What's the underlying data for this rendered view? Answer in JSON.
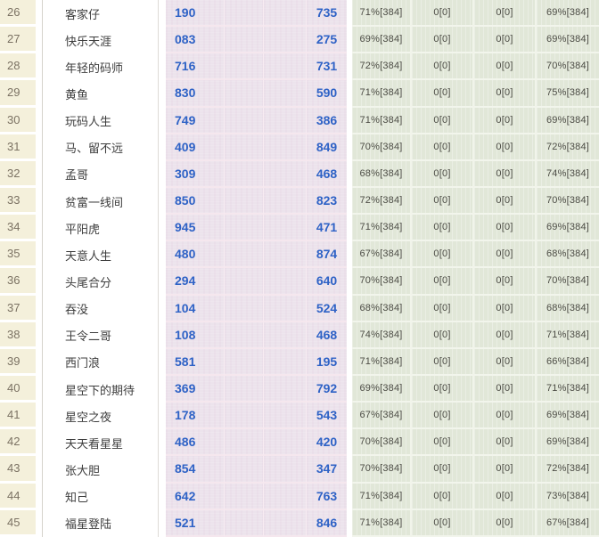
{
  "colors": {
    "beige": "#f4f0db",
    "pink": "#ece3ec",
    "green": "#e1e7d8",
    "accent-blue": "#2e62c6",
    "rank-text": "#7b7263",
    "name-text": "#3d3d3d",
    "pct-text": "#4c4c45"
  },
  "table": {
    "description": "ranking stats table rows 26-45",
    "rows": [
      {
        "rank": "26",
        "name": "客家仔",
        "num1": "190",
        "num2": "735",
        "p1": "71%[384]",
        "p2": "0[0]",
        "p3": "0[0]",
        "p4": "69%[384]"
      },
      {
        "rank": "27",
        "name": "快乐天涯",
        "num1": "083",
        "num2": "275",
        "p1": "69%[384]",
        "p2": "0[0]",
        "p3": "0[0]",
        "p4": "69%[384]"
      },
      {
        "rank": "28",
        "name": "年轻的码师",
        "num1": "716",
        "num2": "731",
        "p1": "72%[384]",
        "p2": "0[0]",
        "p3": "0[0]",
        "p4": "70%[384]"
      },
      {
        "rank": "29",
        "name": "黄鱼",
        "num1": "830",
        "num2": "590",
        "p1": "71%[384]",
        "p2": "0[0]",
        "p3": "0[0]",
        "p4": "75%[384]"
      },
      {
        "rank": "30",
        "name": "玩码人生",
        "num1": "749",
        "num2": "386",
        "p1": "71%[384]",
        "p2": "0[0]",
        "p3": "0[0]",
        "p4": "69%[384]"
      },
      {
        "rank": "31",
        "name": "马、留不远",
        "num1": "409",
        "num2": "849",
        "p1": "70%[384]",
        "p2": "0[0]",
        "p3": "0[0]",
        "p4": "72%[384]"
      },
      {
        "rank": "32",
        "name": "孟哥",
        "num1": "309",
        "num2": "468",
        "p1": "68%[384]",
        "p2": "0[0]",
        "p3": "0[0]",
        "p4": "74%[384]"
      },
      {
        "rank": "33",
        "name": "贫富一线间",
        "num1": "850",
        "num2": "823",
        "p1": "72%[384]",
        "p2": "0[0]",
        "p3": "0[0]",
        "p4": "70%[384]"
      },
      {
        "rank": "34",
        "name": "平阳虎",
        "num1": "945",
        "num2": "471",
        "p1": "71%[384]",
        "p2": "0[0]",
        "p3": "0[0]",
        "p4": "69%[384]"
      },
      {
        "rank": "35",
        "name": "天意人生",
        "num1": "480",
        "num2": "874",
        "p1": "67%[384]",
        "p2": "0[0]",
        "p3": "0[0]",
        "p4": "68%[384]"
      },
      {
        "rank": "36",
        "name": "头尾合分",
        "num1": "294",
        "num2": "640",
        "p1": "70%[384]",
        "p2": "0[0]",
        "p3": "0[0]",
        "p4": "70%[384]"
      },
      {
        "rank": "37",
        "name": "吞没",
        "num1": "104",
        "num2": "524",
        "p1": "68%[384]",
        "p2": "0[0]",
        "p3": "0[0]",
        "p4": "68%[384]"
      },
      {
        "rank": "38",
        "name": "王令二哥",
        "num1": "108",
        "num2": "468",
        "p1": "74%[384]",
        "p2": "0[0]",
        "p3": "0[0]",
        "p4": "71%[384]"
      },
      {
        "rank": "39",
        "name": "西门浪",
        "num1": "581",
        "num2": "195",
        "p1": "71%[384]",
        "p2": "0[0]",
        "p3": "0[0]",
        "p4": "66%[384]"
      },
      {
        "rank": "40",
        "name": "星空下的期待",
        "num1": "369",
        "num2": "792",
        "p1": "69%[384]",
        "p2": "0[0]",
        "p3": "0[0]",
        "p4": "71%[384]"
      },
      {
        "rank": "41",
        "name": "星空之夜",
        "num1": "178",
        "num2": "543",
        "p1": "67%[384]",
        "p2": "0[0]",
        "p3": "0[0]",
        "p4": "69%[384]"
      },
      {
        "rank": "42",
        "name": "天天看星星",
        "num1": "486",
        "num2": "420",
        "p1": "70%[384]",
        "p2": "0[0]",
        "p3": "0[0]",
        "p4": "69%[384]"
      },
      {
        "rank": "43",
        "name": "张大胆",
        "num1": "854",
        "num2": "347",
        "p1": "70%[384]",
        "p2": "0[0]",
        "p3": "0[0]",
        "p4": "72%[384]"
      },
      {
        "rank": "44",
        "name": "知己",
        "num1": "642",
        "num2": "763",
        "p1": "71%[384]",
        "p2": "0[0]",
        "p3": "0[0]",
        "p4": "73%[384]"
      },
      {
        "rank": "45",
        "name": "福星登陆",
        "num1": "521",
        "num2": "846",
        "p1": "71%[384]",
        "p2": "0[0]",
        "p3": "0[0]",
        "p4": "67%[384]"
      }
    ]
  }
}
